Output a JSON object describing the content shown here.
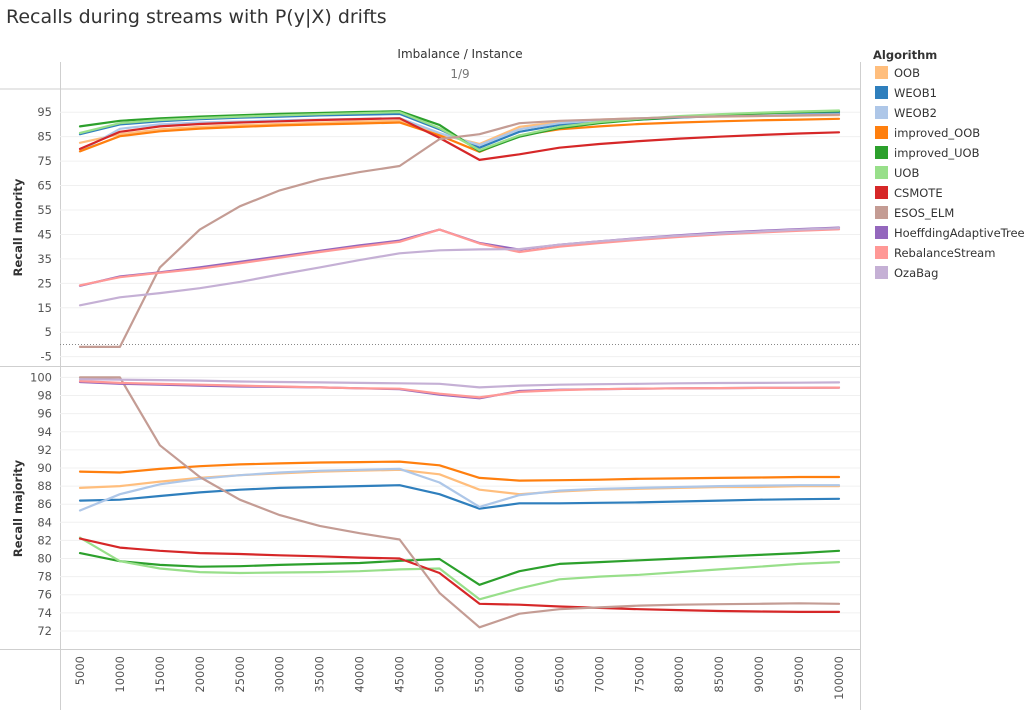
{
  "title": "Recalls during streams with P(y|X) drifts",
  "legend": {
    "title": "Algorithm",
    "items": [
      {
        "label": "OOB",
        "color": "#ffbe7d"
      },
      {
        "label": "WEOB1",
        "color": "#2f7fbd"
      },
      {
        "label": "WEOB2",
        "color": "#aec7e8"
      },
      {
        "label": "improved_OOB",
        "color": "#ff7f0e"
      },
      {
        "label": "improved_UOB",
        "color": "#2ca02c"
      },
      {
        "label": "UOB",
        "color": "#98df8a"
      },
      {
        "label": "CSMOTE",
        "color": "#d62728"
      },
      {
        "label": "ESOS_ELM",
        "color": "#c49c94"
      },
      {
        "label": "HoeffdingAdaptiveTree",
        "color": "#9467bd"
      },
      {
        "label": "RebalanceStream",
        "color": "#ff9896"
      },
      {
        "label": "OzaBag",
        "color": "#c5b0d5"
      }
    ]
  },
  "chart_data": {
    "type": "line",
    "column_header": "Imbalance / Instance",
    "column_value": "1/9",
    "x": [
      5000,
      10000,
      15000,
      20000,
      25000,
      30000,
      35000,
      40000,
      45000,
      50000,
      55000,
      60000,
      65000,
      70000,
      75000,
      80000,
      85000,
      90000,
      95000,
      100000
    ],
    "x_tick_labels": [
      "5000",
      "10000",
      "15000",
      "20000",
      "25000",
      "30000",
      "35000",
      "40000",
      "45000",
      "50000",
      "55000",
      "60000",
      "65000",
      "70000",
      "75000",
      "80000",
      "85000",
      "90000",
      "95000",
      "100000"
    ],
    "panels": [
      {
        "ylabel": "Recall minority",
        "ylim": [
          -8,
          100
        ],
        "yticks": [
          95,
          85,
          75,
          65,
          55,
          45,
          35,
          25,
          15,
          5,
          -5
        ],
        "zero_line": true,
        "series": [
          {
            "name": "OOB",
            "values": [
              82.5,
              86,
              88,
              89,
              89.7,
              90.2,
              90.7,
              91.2,
              91.5,
              86,
              82,
              89,
              91,
              92,
              92.5,
              93,
              93.2,
              93.4,
              93.6,
              93.8
            ]
          },
          {
            "name": "WEOB1",
            "values": [
              86,
              90,
              91.3,
              92.2,
              92.8,
              93.2,
              93.7,
              94,
              94.3,
              88,
              80.5,
              87,
              89.8,
              91,
              92,
              92.8,
              93.5,
              94,
              94.4,
              94.7
            ]
          },
          {
            "name": "WEOB2",
            "values": [
              79,
              88.2,
              90,
              90.8,
              91.2,
              91.7,
              92,
              92.3,
              92.6,
              86.5,
              81.5,
              88,
              90.5,
              91.7,
              92.5,
              93,
              93.5,
              93.8,
              94,
              94.2
            ]
          },
          {
            "name": "improved_OOB",
            "values": [
              79,
              85.2,
              87.2,
              88.3,
              89,
              89.6,
              90,
              90.4,
              90.8,
              85.5,
              78.8,
              85.5,
              88,
              89.2,
              90.2,
              90.8,
              91.3,
              91.7,
              92,
              92.3
            ]
          },
          {
            "name": "improved_UOB",
            "values": [
              89.2,
              91.5,
              92.5,
              93.2,
              93.8,
              94.3,
              94.7,
              95.1,
              95.4,
              89.8,
              79,
              85,
              88.5,
              90.5,
              92,
              93,
              93.8,
              94.5,
              95,
              95.4
            ]
          },
          {
            "name": "UOB",
            "values": [
              86.5,
              90.5,
              91.8,
              92.6,
              93.2,
              93.7,
              94.2,
              94.6,
              95,
              88.5,
              79.5,
              85.5,
              89,
              91,
              92.3,
              93.4,
              94.2,
              94.8,
              95.3,
              95.7
            ]
          },
          {
            "name": "CSMOTE",
            "values": [
              80,
              87,
              89.2,
              90.2,
              90.8,
              91.3,
              91.8,
              92.2,
              92.5,
              84.5,
              75.5,
              77.8,
              80.5,
              82,
              83.2,
              84.2,
              85,
              85.7,
              86.3,
              86.8
            ]
          },
          {
            "name": "ESOS_ELM",
            "values": [
              -1,
              -1,
              31.5,
              47,
              56.5,
              63,
              67.5,
              70.5,
              73,
              84,
              86,
              90.5,
              91.5,
              92,
              92.5,
              93,
              93.3,
              93.5,
              93.7,
              94
            ]
          },
          {
            "name": "HoeffdingAdaptiveTree",
            "values": [
              24,
              27.8,
              29.5,
              31.5,
              33.8,
              36,
              38.3,
              40.5,
              42.5,
              47,
              41.5,
              38.8,
              40.8,
              42.2,
              43.5,
              44.7,
              45.7,
              46.5,
              47.2,
              47.8
            ]
          },
          {
            "name": "RebalanceStream",
            "values": [
              24.2,
              27.5,
              29.3,
              31,
              33.2,
              35.5,
              37.8,
              40,
              42,
              47,
              41.3,
              37.8,
              40,
              41.5,
              42.8,
              44,
              45,
              45.8,
              46.5,
              47.1
            ]
          },
          {
            "name": "OzaBag",
            "values": [
              16,
              19.3,
              21,
              23,
              25.6,
              28.6,
              31.5,
              34.5,
              37.3,
              38.5,
              38.9,
              39,
              40.8,
              42.2,
              43.4,
              44.5,
              45.4,
              46.2,
              47,
              47.6
            ]
          }
        ]
      },
      {
        "ylabel": "Recall majority",
        "ylim": [
          71,
          100.6
        ],
        "yticks": [
          100,
          98,
          96,
          94,
          92,
          90,
          88,
          86,
          84,
          82,
          80,
          78,
          76,
          74,
          72
        ],
        "zero_line": false,
        "series": [
          {
            "name": "OOB",
            "values": [
              87.8,
              88,
              88.5,
              88.9,
              89.2,
              89.4,
              89.6,
              89.7,
              89.8,
              89.3,
              87.6,
              87.1,
              87.4,
              87.6,
              87.7,
              87.8,
              87.9,
              87.9,
              88,
              88
            ]
          },
          {
            "name": "WEOB1",
            "values": [
              86.4,
              86.5,
              86.9,
              87.3,
              87.6,
              87.8,
              87.9,
              88,
              88.1,
              87.1,
              85.5,
              86.1,
              86.1,
              86.15,
              86.2,
              86.3,
              86.4,
              86.5,
              86.55,
              86.6
            ]
          },
          {
            "name": "WEOB2",
            "values": [
              85.3,
              87.1,
              88.2,
              88.8,
              89.2,
              89.5,
              89.7,
              89.8,
              89.9,
              88.4,
              85.7,
              87,
              87.5,
              87.7,
              87.8,
              87.9,
              88,
              88.05,
              88.1,
              88.1
            ]
          },
          {
            "name": "improved_OOB",
            "values": [
              89.6,
              89.5,
              89.9,
              90.2,
              90.4,
              90.5,
              90.6,
              90.65,
              90.7,
              90.3,
              88.9,
              88.6,
              88.65,
              88.7,
              88.8,
              88.85,
              88.9,
              88.95,
              89,
              89
            ]
          },
          {
            "name": "improved_UOB",
            "values": [
              80.6,
              79.7,
              79.3,
              79.1,
              79.15,
              79.3,
              79.4,
              79.5,
              79.75,
              79.95,
              77.1,
              78.6,
              79.4,
              79.6,
              79.8,
              80,
              80.2,
              80.4,
              80.6,
              80.85
            ]
          },
          {
            "name": "UOB",
            "values": [
              82.3,
              79.7,
              78.9,
              78.5,
              78.4,
              78.45,
              78.5,
              78.6,
              78.8,
              78.9,
              75.5,
              76.7,
              77.7,
              78,
              78.2,
              78.5,
              78.8,
              79.1,
              79.4,
              79.6
            ]
          },
          {
            "name": "CSMOTE",
            "values": [
              82.2,
              81.2,
              80.85,
              80.6,
              80.5,
              80.35,
              80.25,
              80.1,
              80,
              78.4,
              75,
              74.9,
              74.7,
              74.55,
              74.4,
              74.3,
              74.2,
              74.15,
              74.1,
              74.1
            ]
          },
          {
            "name": "ESOS_ELM",
            "values": [
              100,
              100,
              92.5,
              89,
              86.5,
              84.8,
              83.6,
              82.8,
              82.1,
              76.2,
              72.4,
              73.9,
              74.4,
              74.6,
              74.8,
              74.9,
              74.95,
              75,
              75.05,
              75
            ]
          },
          {
            "name": "HoeffdingAdaptiveTree",
            "values": [
              99.5,
              99.3,
              99.2,
              99.1,
              99,
              98.95,
              98.9,
              98.8,
              98.7,
              98.1,
              97.7,
              98.5,
              98.65,
              98.7,
              98.75,
              98.8,
              98.82,
              98.84,
              98.86,
              98.88
            ]
          },
          {
            "name": "RebalanceStream",
            "values": [
              99.6,
              99.4,
              99.3,
              99.2,
              99.1,
              99,
              98.9,
              98.8,
              98.75,
              98.2,
              97.8,
              98.4,
              98.6,
              98.7,
              98.75,
              98.8,
              98.82,
              98.84,
              98.86,
              98.88
            ]
          },
          {
            "name": "OzaBag",
            "values": [
              99.8,
              99.75,
              99.7,
              99.65,
              99.55,
              99.5,
              99.45,
              99.4,
              99.35,
              99.3,
              98.9,
              99.1,
              99.2,
              99.25,
              99.3,
              99.35,
              99.38,
              99.4,
              99.42,
              99.45
            ]
          }
        ]
      }
    ]
  }
}
